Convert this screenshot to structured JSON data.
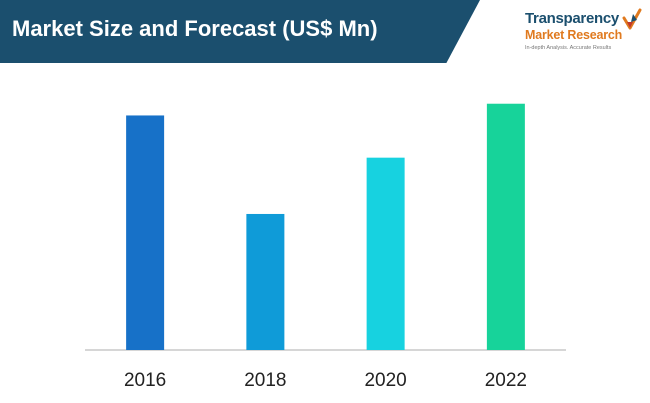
{
  "header": {
    "title": "Market Size and Forecast (US$ Mn)"
  },
  "logo": {
    "name_line1": "Transparency",
    "name_line2": "Market Research",
    "tagline": "In-depth Analysis. Accurate Results"
  },
  "colors": {
    "header_band": "#1b4f6e",
    "logo_orange": "#e07a1f",
    "axis": "#c8c8c8"
  },
  "chart_data": {
    "type": "bar",
    "title": "Market Size and Forecast (US$ Mn)",
    "categories": [
      "2016",
      "2018",
      "2020",
      "2022"
    ],
    "values": [
      100,
      58,
      82,
      105
    ],
    "value_note": "relative values; no y-axis scale shown",
    "bar_colors": [
      "#1771c8",
      "#0f9bd8",
      "#17d2e0",
      "#17d39a"
    ],
    "ylim": [
      0,
      110
    ],
    "grid": false,
    "legend": "none",
    "xlabel": "",
    "ylabel": ""
  }
}
